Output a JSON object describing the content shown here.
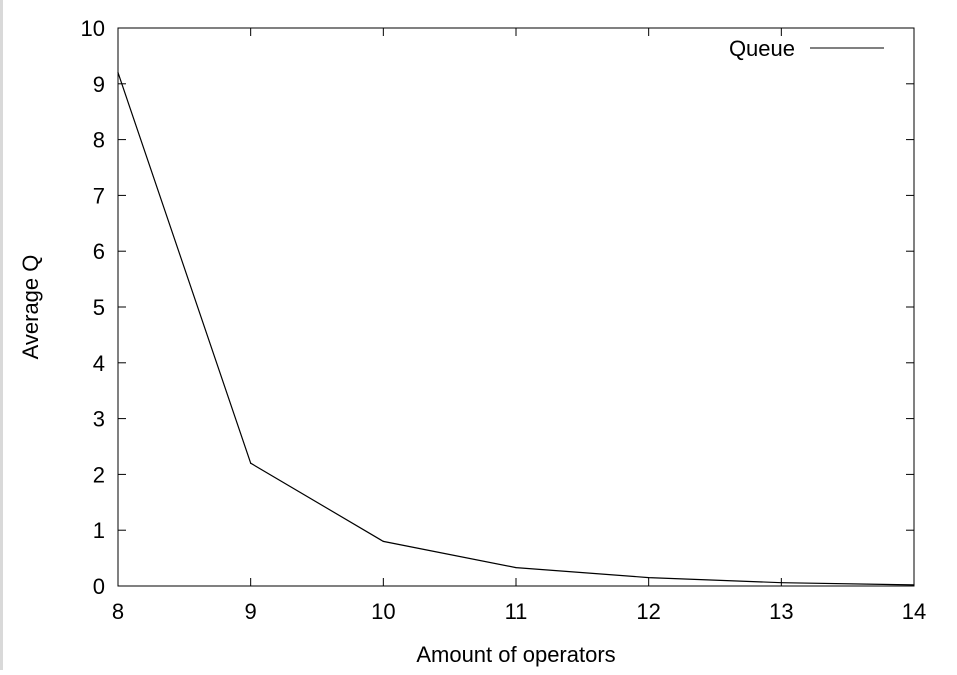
{
  "chart_data": {
    "type": "line",
    "title": "",
    "xlabel": "Amount of operators",
    "ylabel": "Average Q",
    "xlim": [
      8,
      14
    ],
    "ylim": [
      0,
      10
    ],
    "xticks": [
      "8",
      "9",
      "10",
      "11",
      "12",
      "13",
      "14"
    ],
    "yticks": [
      "0",
      "1",
      "2",
      "3",
      "4",
      "5",
      "6",
      "7",
      "8",
      "9",
      "10"
    ],
    "grid": false,
    "legend_position": "top-right",
    "series": [
      {
        "name": "Queue",
        "color": "#000000",
        "x": [
          8,
          9,
          10,
          11,
          12,
          13,
          14
        ],
        "y": [
          9.2,
          2.2,
          0.8,
          0.33,
          0.15,
          0.06,
          0.02
        ]
      }
    ]
  }
}
